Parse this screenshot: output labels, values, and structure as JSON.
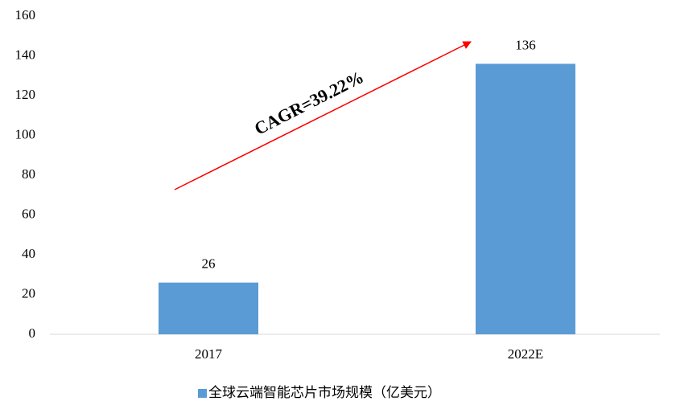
{
  "chart_data": {
    "type": "bar",
    "categories": [
      "2017",
      "2022E"
    ],
    "values": [
      26,
      136
    ],
    "color": "#5b9bd5",
    "series_name": "全球云端智能芯片市场规模（亿美元）",
    "annotation": "CAGR=39.22%",
    "ylim": [
      0,
      160
    ],
    "yticks": [
      0,
      20,
      40,
      60,
      80,
      100,
      120,
      140,
      160
    ],
    "grid": false
  }
}
